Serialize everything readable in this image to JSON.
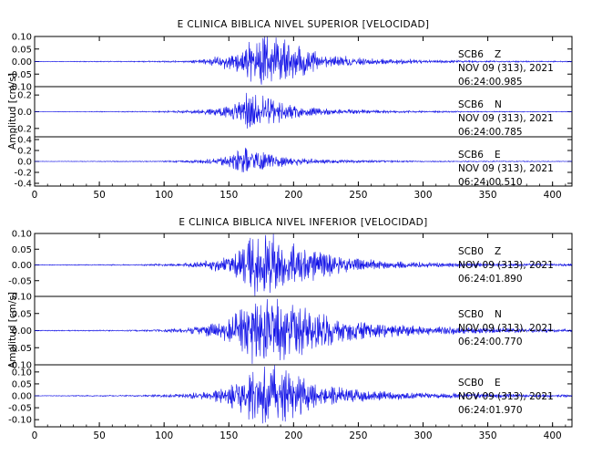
{
  "colors": {
    "trace": "#1010e6",
    "axis": "#000000",
    "background": "#ffffff"
  },
  "chart_data": [
    {
      "type": "line",
      "title": "E CLINICA BIBLICA NIVEL SUPERIOR [VELOCIDAD]",
      "ylabel": "Amplitud [cm/s]",
      "xlim": [
        0,
        415
      ],
      "x_ticks": [
        "0",
        "50",
        "100",
        "150",
        "200",
        "250",
        "300",
        "350",
        "400"
      ],
      "series": [
        {
          "station": "SCB6",
          "component": "Z",
          "date": "NOV 09 (313), 2021",
          "time": "06:24:00.985",
          "ylim": [
            -0.1,
            0.1
          ],
          "y_ticks": [
            "0.10",
            "0.05",
            "0.00",
            "-0.05",
            "-0.10"
          ],
          "envelope": [
            [
              0,
              0.001
            ],
            [
              80,
              0.002
            ],
            [
              120,
              0.004
            ],
            [
              135,
              0.012
            ],
            [
              150,
              0.03
            ],
            [
              160,
              0.05
            ],
            [
              165,
              0.09
            ],
            [
              172,
              0.08
            ],
            [
              180,
              0.1
            ],
            [
              188,
              0.085
            ],
            [
              198,
              0.07
            ],
            [
              212,
              0.045
            ],
            [
              230,
              0.025
            ],
            [
              260,
              0.012
            ],
            [
              300,
              0.006
            ],
            [
              350,
              0.003
            ],
            [
              415,
              0.002
            ]
          ]
        },
        {
          "station": "SCB6",
          "component": "N",
          "date": "NOV 09 (313), 2021",
          "time": "06:24:00.785",
          "ylim": [
            -0.3,
            0.3
          ],
          "y_ticks": [
            "0.2",
            "0.0",
            "-0.2"
          ],
          "envelope": [
            [
              0,
              0.002
            ],
            [
              90,
              0.006
            ],
            [
              120,
              0.015
            ],
            [
              140,
              0.04
            ],
            [
              155,
              0.1
            ],
            [
              165,
              0.24
            ],
            [
              172,
              0.18
            ],
            [
              182,
              0.14
            ],
            [
              195,
              0.09
            ],
            [
              210,
              0.05
            ],
            [
              240,
              0.025
            ],
            [
              280,
              0.012
            ],
            [
              340,
              0.006
            ],
            [
              415,
              0.004
            ]
          ]
        },
        {
          "station": "SCB6",
          "component": "E",
          "date": "NOV 09 (313), 2021",
          "time": "06:24:00.510",
          "ylim": [
            -0.45,
            0.45
          ],
          "y_ticks": [
            "0.4",
            "0.2",
            "0.0",
            "-0.2",
            "-0.4"
          ],
          "envelope": [
            [
              0,
              0.003
            ],
            [
              90,
              0.008
            ],
            [
              120,
              0.02
            ],
            [
              140,
              0.05
            ],
            [
              155,
              0.12
            ],
            [
              163,
              0.32
            ],
            [
              168,
              0.25
            ],
            [
              176,
              0.15
            ],
            [
              190,
              0.09
            ],
            [
              210,
              0.05
            ],
            [
              240,
              0.025
            ],
            [
              300,
              0.01
            ],
            [
              415,
              0.005
            ]
          ]
        }
      ]
    },
    {
      "type": "line",
      "title": "E CLINICA BIBLICA NIVEL INFERIOR [VELOCIDAD]",
      "ylabel": "Amplitud [cm/s]",
      "xlim": [
        0,
        415
      ],
      "x_ticks": [
        "0",
        "50",
        "100",
        "150",
        "200",
        "250",
        "300",
        "350",
        "400"
      ],
      "series": [
        {
          "station": "SCB0",
          "component": "Z",
          "date": "NOV 09 (313), 2021",
          "time": "06:24:01.890",
          "ylim": [
            -0.1,
            0.1
          ],
          "y_ticks": [
            "0.10",
            "0.05",
            "0.00",
            "-0.05"
          ],
          "envelope": [
            [
              0,
              0.001
            ],
            [
              80,
              0.002
            ],
            [
              110,
              0.004
            ],
            [
              130,
              0.01
            ],
            [
              150,
              0.025
            ],
            [
              160,
              0.05
            ],
            [
              170,
              0.09
            ],
            [
              180,
              0.09
            ],
            [
              190,
              0.085
            ],
            [
              205,
              0.06
            ],
            [
              220,
              0.04
            ],
            [
              240,
              0.022
            ],
            [
              270,
              0.012
            ],
            [
              320,
              0.006
            ],
            [
              415,
              0.003
            ]
          ]
        },
        {
          "station": "SCB0",
          "component": "N",
          "date": "NOV 09 (313), 2021",
          "time": "06:24:00.770",
          "ylim": [
            -0.1,
            0.1
          ],
          "y_ticks": [
            "0.10",
            "0.05",
            "0.00",
            "-0.05",
            "-0.10"
          ],
          "envelope": [
            [
              0,
              0.001
            ],
            [
              80,
              0.002
            ],
            [
              110,
              0.005
            ],
            [
              130,
              0.012
            ],
            [
              150,
              0.03
            ],
            [
              165,
              0.08
            ],
            [
              175,
              0.1
            ],
            [
              185,
              0.09
            ],
            [
              200,
              0.07
            ],
            [
              215,
              0.05
            ],
            [
              235,
              0.032
            ],
            [
              260,
              0.02
            ],
            [
              300,
              0.012
            ],
            [
              340,
              0.008
            ],
            [
              415,
              0.004
            ]
          ]
        },
        {
          "station": "SCB0",
          "component": "E",
          "date": "NOV 09 (313), 2021",
          "time": "06:24:01.970",
          "ylim": [
            -0.13,
            0.13
          ],
          "y_ticks": [
            "0.10",
            "0.05",
            "0.00",
            "-0.05",
            "-0.10"
          ],
          "envelope": [
            [
              0,
              0.001
            ],
            [
              80,
              0.003
            ],
            [
              110,
              0.006
            ],
            [
              130,
              0.014
            ],
            [
              150,
              0.035
            ],
            [
              160,
              0.07
            ],
            [
              170,
              0.1
            ],
            [
              180,
              0.12
            ],
            [
              190,
              0.1
            ],
            [
              205,
              0.07
            ],
            [
              220,
              0.045
            ],
            [
              240,
              0.028
            ],
            [
              270,
              0.016
            ],
            [
              310,
              0.01
            ],
            [
              415,
              0.005
            ]
          ]
        }
      ]
    }
  ]
}
